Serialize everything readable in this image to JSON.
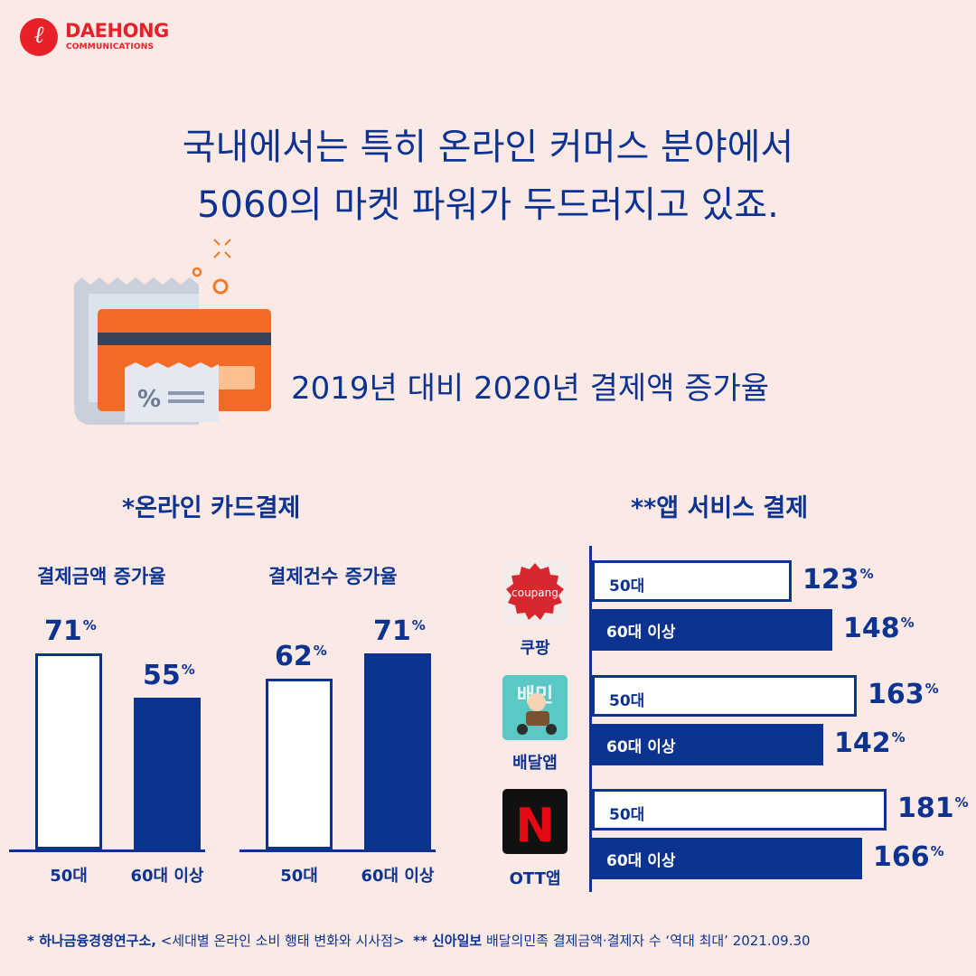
{
  "logo": {
    "name": "DAEHONG",
    "sub": "COMMUNICATIONS",
    "glyph": "ℓ"
  },
  "headline": {
    "line1": "국내에서는 특히 온라인 커머스 분야에서",
    "line2": "5060의 마켓 파워가 두드러지고 있죠."
  },
  "illustration": {
    "card_badge": "%"
  },
  "subheading": "2019년 대비 2020년 결제액 증가율",
  "colors": {
    "navy": "#0d3391",
    "white": "#ffffff",
    "background": "#fbe9e5",
    "brand_red": "#e8202a"
  },
  "percent_sign": "%",
  "chart_data": [
    {
      "type": "bar",
      "title": "*온라인 카드결제",
      "groups": [
        {
          "label": "결제금액 증가율",
          "categories": [
            "50대",
            "60대 이상"
          ],
          "values": [
            71,
            55
          ]
        },
        {
          "label": "결제건수 증가율",
          "categories": [
            "50대",
            "60대 이상"
          ],
          "values": [
            62,
            71
          ]
        }
      ],
      "unit": "%"
    },
    {
      "type": "bar",
      "orientation": "horizontal",
      "title": "**앱 서비스 결제",
      "apps": [
        {
          "label": "쿠팡",
          "icon_text": "coupang",
          "icon": "coupang-logo",
          "rows": [
            {
              "category": "50대",
              "value": 123
            },
            {
              "category": "60대 이상",
              "value": 148
            }
          ]
        },
        {
          "label": "배달앱",
          "icon_text": "배민",
          "icon": "delivery-app-icon",
          "rows": [
            {
              "category": "50대",
              "value": 163
            },
            {
              "category": "60대 이상",
              "value": 142
            }
          ]
        },
        {
          "label": "OTT앱",
          "icon_text": "N",
          "icon": "netflix-icon",
          "rows": [
            {
              "category": "50대",
              "value": 181
            },
            {
              "category": "60대 이상",
              "value": 166
            }
          ]
        }
      ],
      "unit": "%"
    }
  ],
  "footer": {
    "src1_mark": "* 하나금융경영연구소,",
    "src1_text": " <세대별 온라인 소비 행태 변화와 시사점>",
    "src2_mark": "** 신아일보",
    "src2_text": " 배달의민족 결제금액·결제자 수 ‘역대 최대’ 2021.09.30"
  }
}
